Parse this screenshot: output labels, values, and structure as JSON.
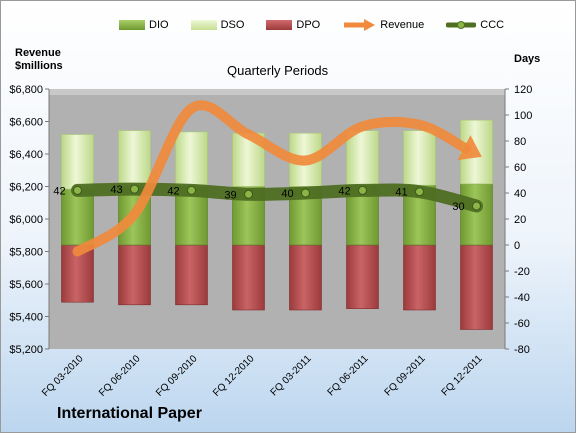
{
  "legend": {
    "dio": "DIO",
    "dso": "DSO",
    "dpo": "DPO",
    "revenue": "Revenue",
    "ccc": "CCC"
  },
  "left_axis_title_line1": "Revenue",
  "left_axis_title_line2": "$millions",
  "right_axis_title": "Days",
  "chart_title": "Quarterly Periods",
  "company": "International Paper",
  "colors": {
    "dio": "#8bb546",
    "dso": "#d6eaa8",
    "dpo": "#b94f52",
    "revenue": "#f08a3c",
    "ccc": "#4e6e22",
    "plot_bg": "#b1b1b1"
  },
  "chart_data": {
    "type": "bar",
    "categories": [
      "FQ 03-2010",
      "FQ 06-2010",
      "FQ 09-2010",
      "FQ 12-2010",
      "FQ 03-2011",
      "FQ 06-2011",
      "FQ 09-2011",
      "FQ 12-2011"
    ],
    "series": [
      {
        "name": "DIO",
        "axis": "right",
        "kind": "stacked-bar-positive",
        "values": [
          43,
          45,
          45,
          45,
          45,
          46,
          46,
          47
        ]
      },
      {
        "name": "DSO",
        "axis": "right",
        "kind": "stacked-bar-positive",
        "values": [
          42,
          43,
          42,
          41,
          41,
          42,
          42,
          49
        ]
      },
      {
        "name": "DPO",
        "axis": "right",
        "kind": "bar-negative",
        "values": [
          -44,
          -46,
          -46,
          -50,
          -50,
          -49,
          -50,
          -65
        ]
      },
      {
        "name": "Revenue",
        "axis": "left",
        "kind": "line",
        "values": [
          5800,
          6030,
          6680,
          6520,
          6360,
          6570,
          6580,
          6400
        ]
      },
      {
        "name": "CCC",
        "axis": "right",
        "kind": "line",
        "values": [
          42,
          43,
          42,
          39,
          40,
          42,
          41,
          30
        ]
      }
    ],
    "left_axis": {
      "ylim": [
        5200,
        6800
      ],
      "ticks": [
        "$5,200",
        "$5,400",
        "$5,600",
        "$5,800",
        "$6,000",
        "$6,200",
        "$6,400",
        "$6,600",
        "$6,800"
      ]
    },
    "right_axis": {
      "ylim": [
        -80,
        120
      ],
      "ticks": [
        "-80",
        "-60",
        "-40",
        "-20",
        "0",
        "20",
        "40",
        "60",
        "80",
        "100",
        "120"
      ]
    },
    "grid": false,
    "legend_position": "top"
  }
}
